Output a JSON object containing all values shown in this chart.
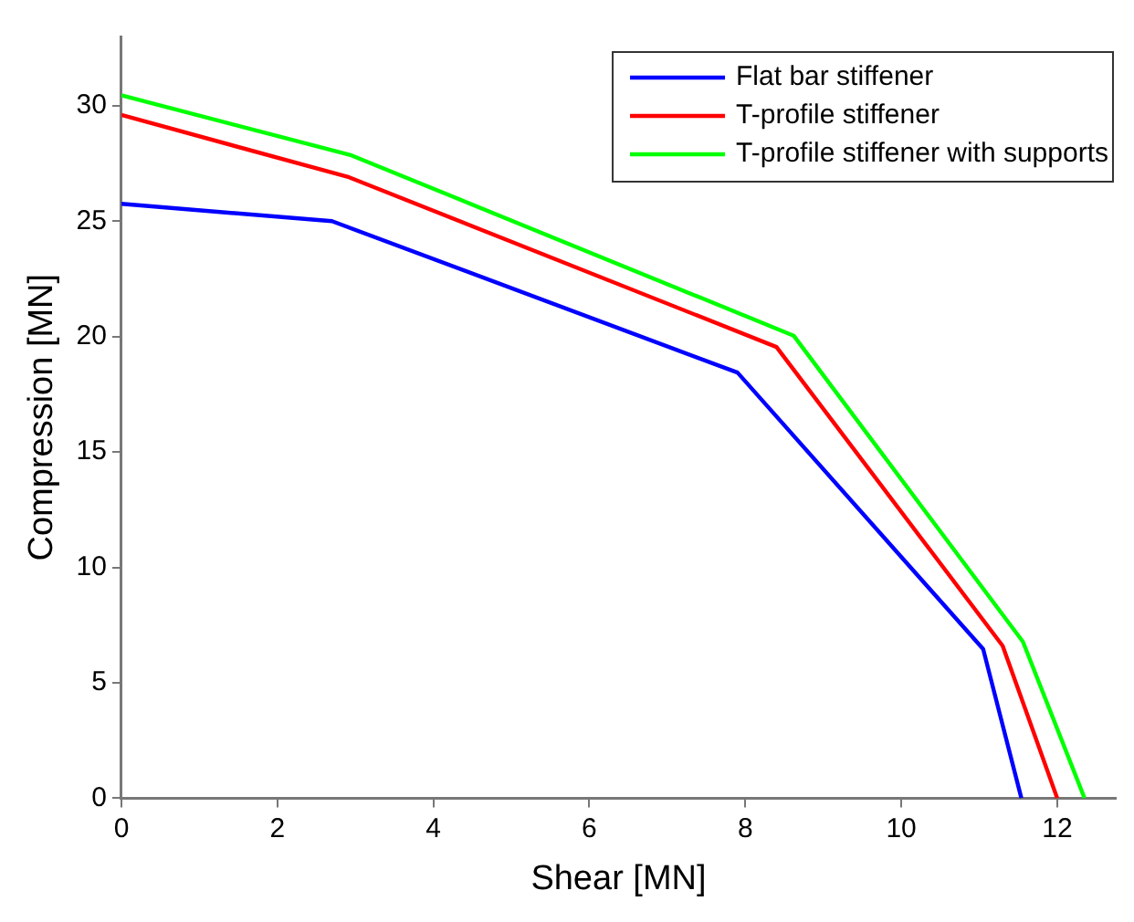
{
  "chart_data": {
    "type": "line",
    "xlabel": "Shear [MN]",
    "ylabel": "Compression [MN]",
    "xlim": [
      0,
      12.75
    ],
    "ylim": [
      0,
      33
    ],
    "xticks": [
      0,
      2,
      4,
      6,
      8,
      10,
      12
    ],
    "yticks": [
      0,
      5,
      10,
      15,
      20,
      25,
      30
    ],
    "grid": false,
    "legend": "top right",
    "marker": "none",
    "line_style": "solid",
    "series": [
      {
        "name": "Flat bar stiffener",
        "color": "#0000ff",
        "x": [
          0,
          2.7,
          7.9,
          11.05,
          11.54
        ],
        "values": [
          25.75,
          25.0,
          18.44,
          6.46,
          0
        ]
      },
      {
        "name": "T-profile stiffener",
        "color": "#ff0000",
        "x": [
          0,
          2.92,
          8.4,
          11.3,
          12.0
        ],
        "values": [
          29.6,
          26.9,
          19.55,
          6.6,
          0
        ]
      },
      {
        "name": "T-profile stiffener with supports",
        "color": "#00ff00",
        "x": [
          0,
          2.95,
          8.62,
          11.56,
          12.35
        ],
        "values": [
          30.45,
          27.85,
          20.04,
          6.78,
          0
        ]
      }
    ]
  }
}
